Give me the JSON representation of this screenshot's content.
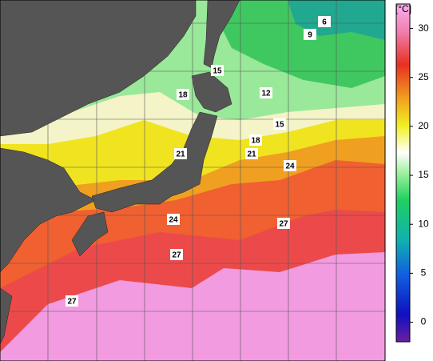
{
  "map": {
    "unit": "[°C]",
    "colorbar": {
      "range": [
        -2,
        32.5
      ],
      "ticks": [
        0,
        5,
        10,
        15,
        20,
        25,
        30
      ]
    },
    "contour_labels": [
      6,
      9,
      15,
      12,
      18,
      15,
      18,
      21,
      21,
      24,
      24,
      27,
      27,
      27
    ]
  }
}
